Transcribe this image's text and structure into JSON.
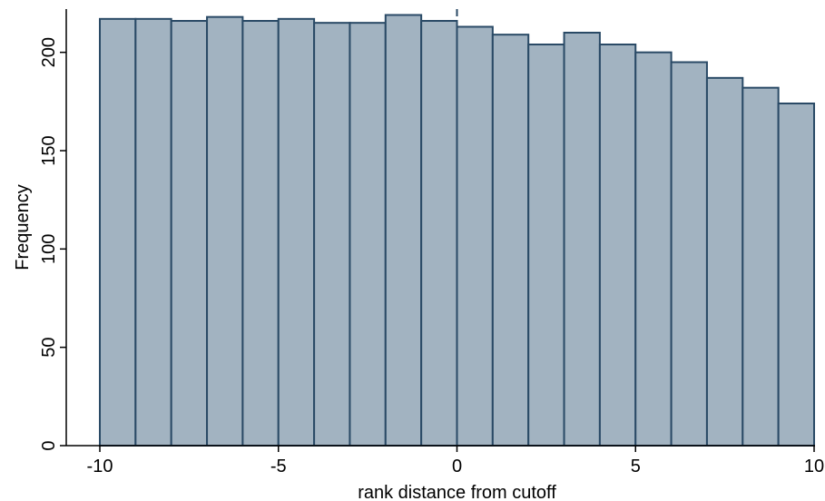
{
  "chart_data": {
    "type": "bar",
    "subtype": "histogram",
    "title": "",
    "xlabel": "rank distance from cutoff",
    "ylabel": "Frequency",
    "bins": [
      {
        "start": -10,
        "end": -9,
        "value": 217
      },
      {
        "start": -9,
        "end": -8,
        "value": 217
      },
      {
        "start": -8,
        "end": -7,
        "value": 216
      },
      {
        "start": -7,
        "end": -6,
        "value": 218
      },
      {
        "start": -6,
        "end": -5,
        "value": 216
      },
      {
        "start": -5,
        "end": -4,
        "value": 217
      },
      {
        "start": -4,
        "end": -3,
        "value": 215
      },
      {
        "start": -3,
        "end": -2,
        "value": 215
      },
      {
        "start": -2,
        "end": -1,
        "value": 219
      },
      {
        "start": -1,
        "end": 0,
        "value": 216
      },
      {
        "start": 0,
        "end": 1,
        "value": 213
      },
      {
        "start": 1,
        "end": 2,
        "value": 209
      },
      {
        "start": 2,
        "end": 3,
        "value": 204
      },
      {
        "start": 3,
        "end": 4,
        "value": 210
      },
      {
        "start": 4,
        "end": 5,
        "value": 204
      },
      {
        "start": 5,
        "end": 6,
        "value": 200
      },
      {
        "start": 6,
        "end": 7,
        "value": 195
      },
      {
        "start": 7,
        "end": 8,
        "value": 187
      },
      {
        "start": 8,
        "end": 9,
        "value": 182
      },
      {
        "start": 9,
        "end": 10,
        "value": 174
      }
    ],
    "xlim": [
      -10,
      10
    ],
    "ylim": [
      0,
      222
    ],
    "xticks": [
      {
        "value": -10,
        "label": "-10"
      },
      {
        "value": -5,
        "label": "-5"
      },
      {
        "value": 0,
        "label": "0"
      },
      {
        "value": 5,
        "label": "5"
      },
      {
        "value": 10,
        "label": "10"
      }
    ],
    "yticks": [
      {
        "value": 0,
        "label": "0"
      },
      {
        "value": 50,
        "label": "50"
      },
      {
        "value": 100,
        "label": "100"
      },
      {
        "value": 150,
        "label": "150"
      },
      {
        "value": 200,
        "label": "200"
      }
    ],
    "reference_line": {
      "x": 0,
      "style": "dashed"
    },
    "grid": false,
    "colors": {
      "bar_fill": "#a2b3c1",
      "bar_edge": "#2a4a66",
      "axis": "#000000",
      "reference_line": "#2a4a66"
    }
  }
}
